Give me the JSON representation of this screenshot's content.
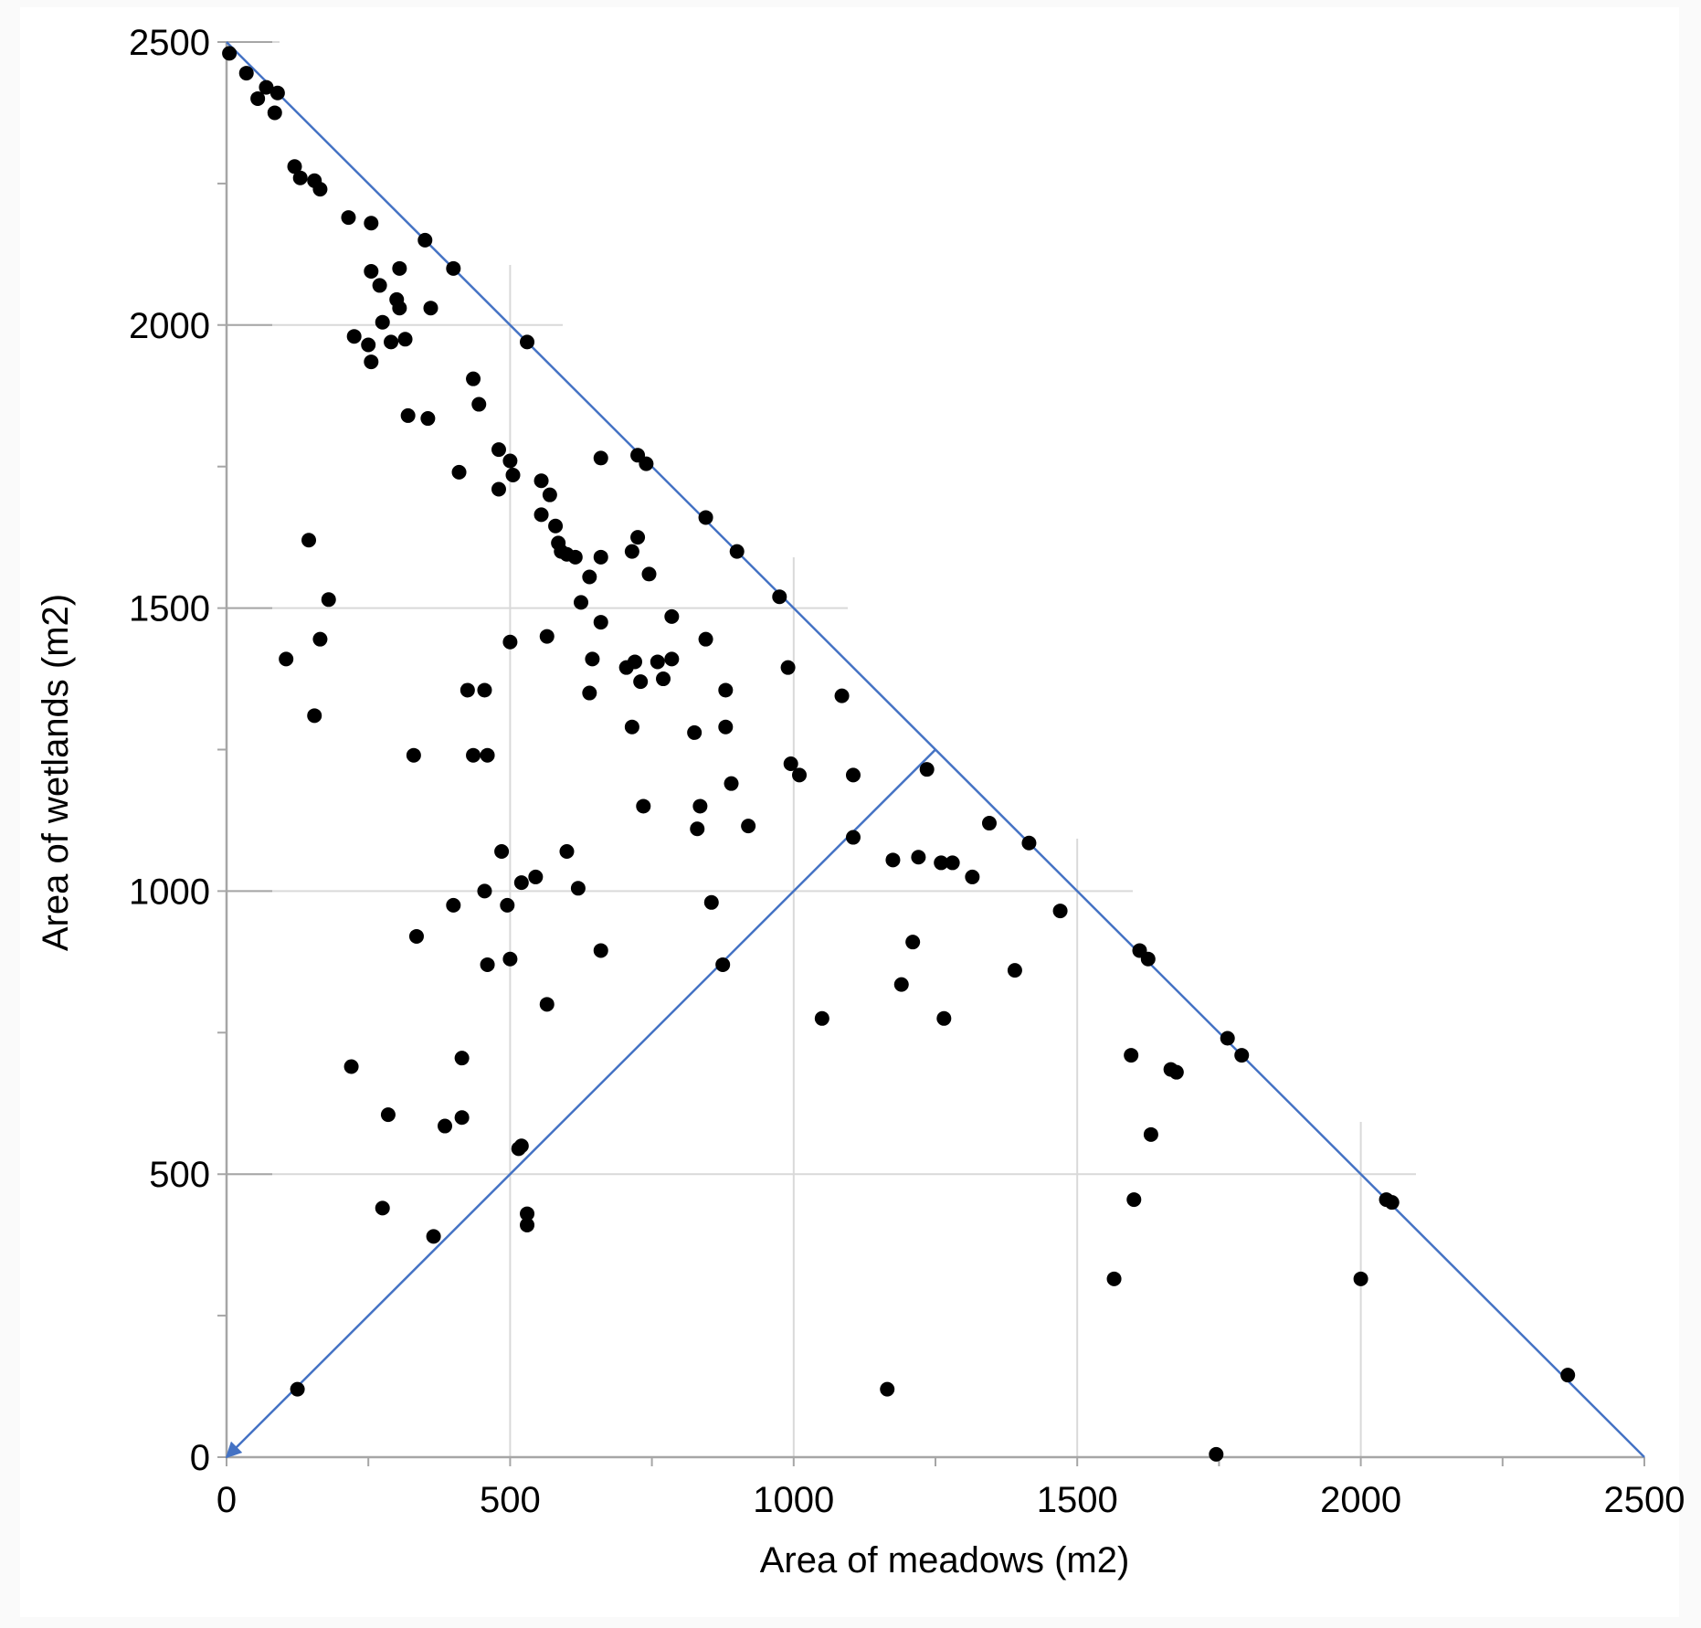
{
  "chart_data": {
    "type": "scatter",
    "title": "",
    "xlabel": "Area of meadows (m2)",
    "ylabel": "Area of wetlands (m2)",
    "xlim": [
      0,
      2500
    ],
    "ylim": [
      0,
      2500
    ],
    "xticks": [
      "0",
      "500",
      "1000",
      "1500",
      "2000",
      "2500"
    ],
    "yticks": [
      "0",
      "500",
      "1000",
      "1500",
      "2000",
      "2500"
    ],
    "grid": true,
    "legend": "none",
    "colors": {
      "points": "#000000",
      "lines": "#4472c4",
      "grid": "#d9d9d9",
      "axis": "#a6a6a6"
    },
    "lines": [
      {
        "from": [
          0,
          2500
        ],
        "to": [
          2500,
          0
        ]
      },
      {
        "from": [
          1250,
          1250
        ],
        "to": [
          0,
          0
        ],
        "arrow": "end"
      }
    ],
    "points": [
      [
        5,
        2480
      ],
      [
        35,
        2445
      ],
      [
        55,
        2400
      ],
      [
        70,
        2420
      ],
      [
        85,
        2375
      ],
      [
        90,
        2410
      ],
      [
        120,
        2280
      ],
      [
        130,
        2260
      ],
      [
        155,
        2255
      ],
      [
        165,
        2240
      ],
      [
        215,
        2190
      ],
      [
        255,
        2180
      ],
      [
        350,
        2150
      ],
      [
        400,
        2100
      ],
      [
        255,
        2095
      ],
      [
        305,
        2100
      ],
      [
        270,
        2070
      ],
      [
        300,
        2045
      ],
      [
        305,
        2030
      ],
      [
        360,
        2030
      ],
      [
        275,
        2005
      ],
      [
        225,
        1980
      ],
      [
        290,
        1970
      ],
      [
        250,
        1965
      ],
      [
        315,
        1975
      ],
      [
        255,
        1935
      ],
      [
        530,
        1970
      ],
      [
        320,
        1840
      ],
      [
        355,
        1835
      ],
      [
        435,
        1905
      ],
      [
        445,
        1860
      ],
      [
        480,
        1780
      ],
      [
        500,
        1760
      ],
      [
        410,
        1740
      ],
      [
        505,
        1735
      ],
      [
        480,
        1710
      ],
      [
        660,
        1765
      ],
      [
        725,
        1770
      ],
      [
        740,
        1755
      ],
      [
        555,
        1725
      ],
      [
        570,
        1700
      ],
      [
        555,
        1665
      ],
      [
        580,
        1645
      ],
      [
        585,
        1615
      ],
      [
        590,
        1600
      ],
      [
        600,
        1595
      ],
      [
        615,
        1590
      ],
      [
        725,
        1625
      ],
      [
        715,
        1600
      ],
      [
        660,
        1590
      ],
      [
        640,
        1555
      ],
      [
        745,
        1560
      ],
      [
        625,
        1510
      ],
      [
        845,
        1660
      ],
      [
        900,
        1600
      ],
      [
        145,
        1620
      ],
      [
        180,
        1515
      ],
      [
        105,
        1410
      ],
      [
        165,
        1445
      ],
      [
        155,
        1310
      ],
      [
        500,
        1440
      ],
      [
        565,
        1450
      ],
      [
        660,
        1475
      ],
      [
        785,
        1485
      ],
      [
        845,
        1445
      ],
      [
        645,
        1410
      ],
      [
        705,
        1395
      ],
      [
        720,
        1405
      ],
      [
        760,
        1405
      ],
      [
        770,
        1375
      ],
      [
        785,
        1410
      ],
      [
        730,
        1370
      ],
      [
        640,
        1350
      ],
      [
        880,
        1355
      ],
      [
        990,
        1395
      ],
      [
        1085,
        1345
      ],
      [
        975,
        1520
      ],
      [
        425,
        1355
      ],
      [
        455,
        1355
      ],
      [
        330,
        1240
      ],
      [
        435,
        1240
      ],
      [
        460,
        1240
      ],
      [
        715,
        1290
      ],
      [
        825,
        1280
      ],
      [
        880,
        1290
      ],
      [
        995,
        1225
      ],
      [
        1010,
        1205
      ],
      [
        1105,
        1205
      ],
      [
        1235,
        1215
      ],
      [
        890,
        1190
      ],
      [
        735,
        1150
      ],
      [
        835,
        1150
      ],
      [
        920,
        1115
      ],
      [
        830,
        1110
      ],
      [
        1345,
        1120
      ],
      [
        1105,
        1095
      ],
      [
        1415,
        1085
      ],
      [
        1175,
        1055
      ],
      [
        1220,
        1060
      ],
      [
        1260,
        1050
      ],
      [
        1280,
        1050
      ],
      [
        1315,
        1025
      ],
      [
        600,
        1070
      ],
      [
        485,
        1070
      ],
      [
        520,
        1015
      ],
      [
        545,
        1025
      ],
      [
        455,
        1000
      ],
      [
        620,
        1005
      ],
      [
        400,
        975
      ],
      [
        495,
        975
      ],
      [
        855,
        980
      ],
      [
        1470,
        965
      ],
      [
        335,
        920
      ],
      [
        1210,
        910
      ],
      [
        500,
        880
      ],
      [
        460,
        870
      ],
      [
        660,
        895
      ],
      [
        875,
        870
      ],
      [
        1390,
        860
      ],
      [
        1610,
        895
      ],
      [
        1625,
        880
      ],
      [
        1190,
        835
      ],
      [
        565,
        800
      ],
      [
        1050,
        775
      ],
      [
        1265,
        775
      ],
      [
        1765,
        740
      ],
      [
        1790,
        710
      ],
      [
        1595,
        710
      ],
      [
        220,
        690
      ],
      [
        415,
        705
      ],
      [
        1665,
        685
      ],
      [
        1675,
        680
      ],
      [
        285,
        605
      ],
      [
        385,
        585
      ],
      [
        415,
        600
      ],
      [
        1630,
        570
      ],
      [
        520,
        550
      ],
      [
        515,
        545
      ],
      [
        275,
        440
      ],
      [
        1600,
        455
      ],
      [
        530,
        430
      ],
      [
        365,
        390
      ],
      [
        530,
        410
      ],
      [
        2045,
        455
      ],
      [
        2055,
        450
      ],
      [
        1565,
        315
      ],
      [
        2000,
        315
      ],
      [
        125,
        120
      ],
      [
        1165,
        120
      ],
      [
        2365,
        145
      ],
      [
        1745,
        5
      ]
    ]
  }
}
